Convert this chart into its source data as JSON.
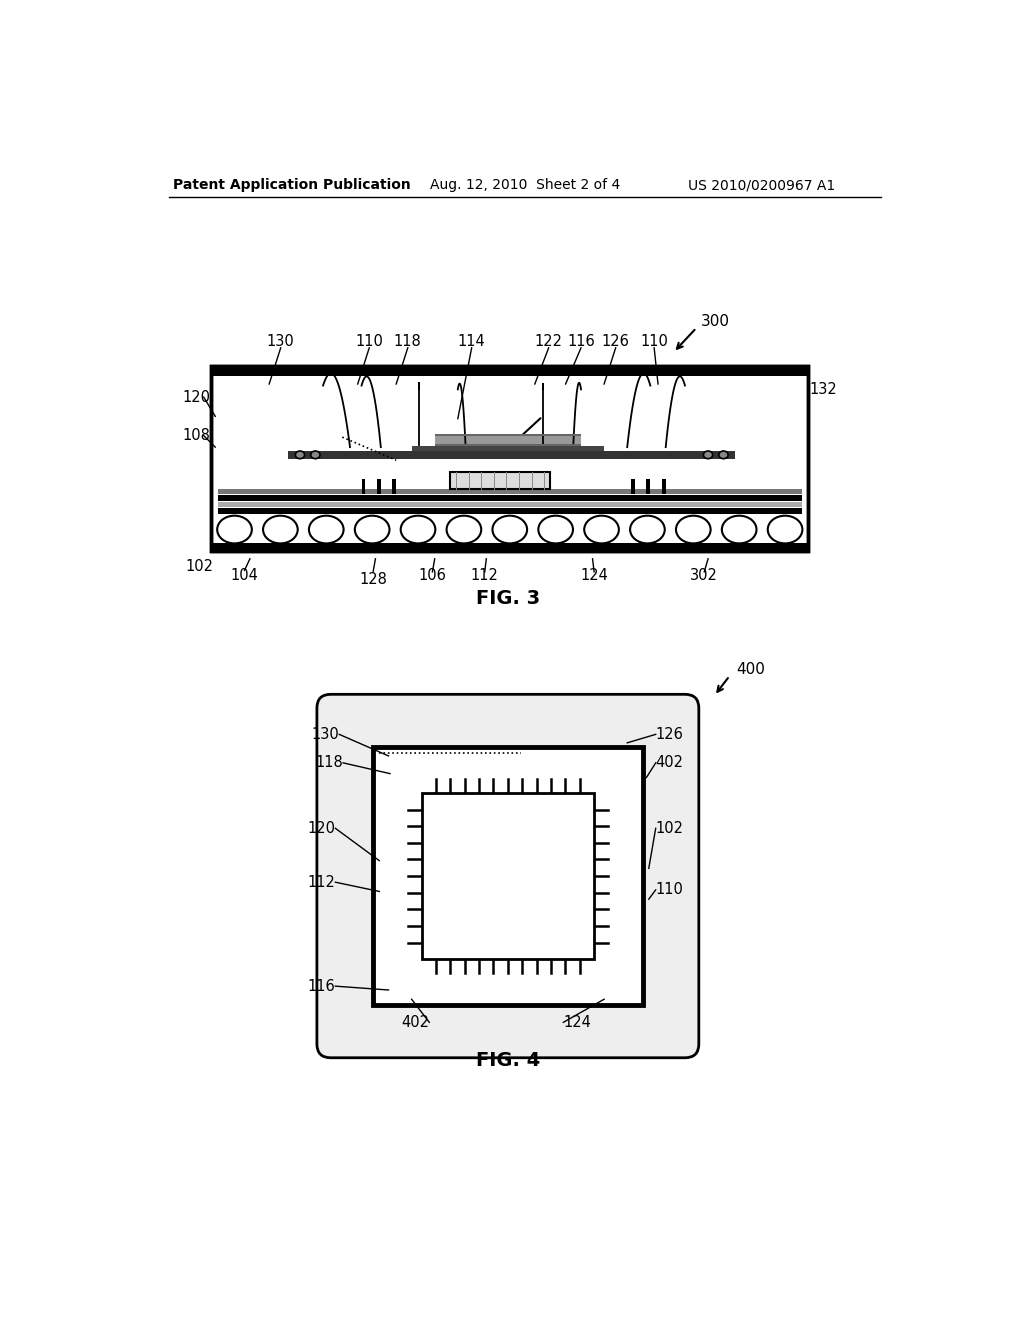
{
  "bg_color": "#ffffff",
  "line_color": "#000000",
  "header_text": "Patent Application Publication",
  "header_date": "Aug. 12, 2010  Sheet 2 of 4",
  "header_patent": "US 2010/0200967 A1",
  "fig3_label": "FIG. 3",
  "fig4_label": "FIG. 4",
  "fig3_ref": "300",
  "fig4_ref": "400"
}
